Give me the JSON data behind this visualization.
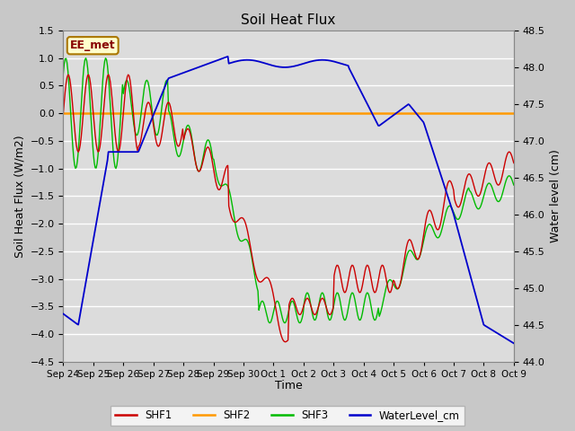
{
  "title": "Soil Heat Flux",
  "xlabel": "Time",
  "ylabel_left": "Soil Heat Flux (W/m2)",
  "ylabel_right": "Water level (cm)",
  "ylim_left": [
    -4.5,
    1.5
  ],
  "ylim_right": [
    44.0,
    48.5
  ],
  "annotation": "EE_met",
  "annotation_bg": "#ffffcc",
  "annotation_border": "#aa7700",
  "annotation_text_color": "#880000",
  "colors": {
    "SHF1": "#cc0000",
    "SHF2": "#ff9900",
    "SHF3": "#00bb00",
    "WaterLevel_cm": "#0000cc"
  },
  "xtick_labels": [
    "Sep 24",
    "Sep 25",
    "Sep 26",
    "Sep 27",
    "Sep 28",
    "Sep 29",
    "Sep 30",
    "Oct 1",
    "Oct 2",
    "Oct 3",
    "Oct 4",
    "Oct 5",
    "Oct 6",
    "Oct 7",
    "Oct 8",
    "Oct 9"
  ],
  "shf2_value": 0.0,
  "fig_width": 6.4,
  "fig_height": 4.8,
  "dpi": 100
}
